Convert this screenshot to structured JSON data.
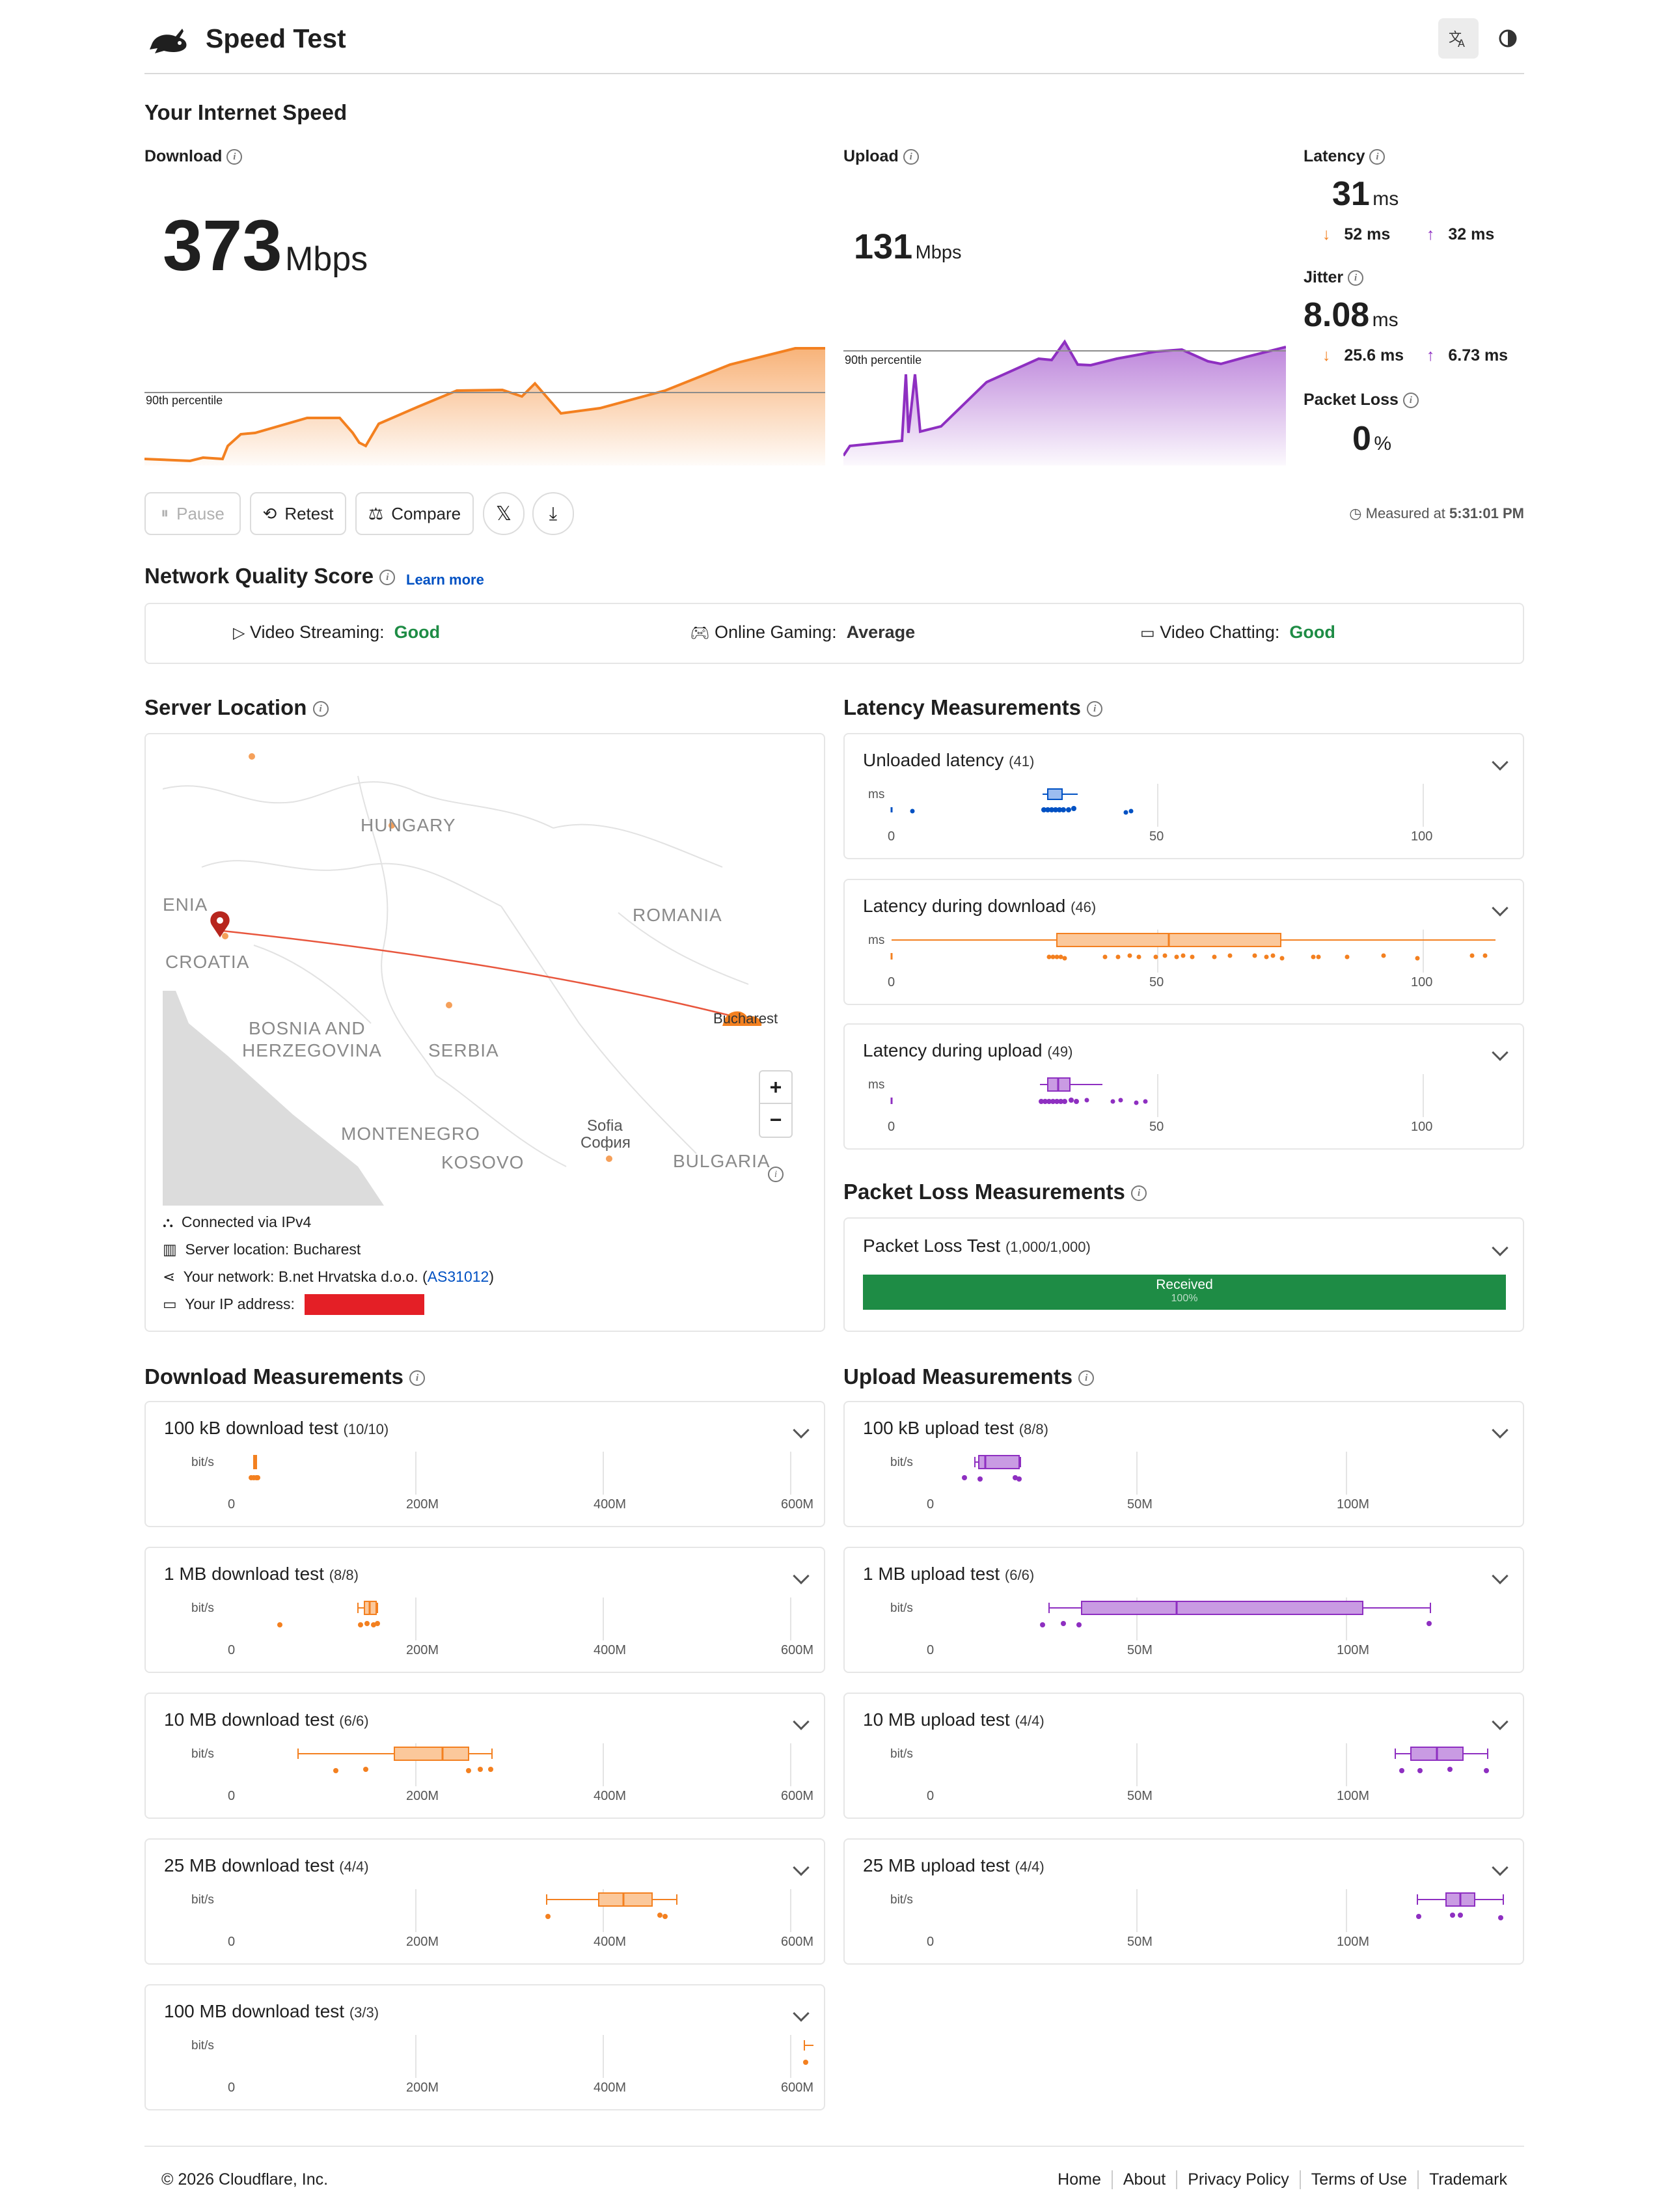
{
  "header": {
    "title": "Speed Test"
  },
  "section_title": "Your Internet Speed",
  "download": {
    "label": "Download",
    "value": "373",
    "unit": "Mbps",
    "percentile": "90th percentile"
  },
  "upload": {
    "label": "Upload",
    "value": "131",
    "unit": "Mbps",
    "percentile": "90th percentile"
  },
  "latency": {
    "label": "Latency",
    "value": "31",
    "unit": "ms",
    "down": "52 ms",
    "up": "32 ms"
  },
  "jitter": {
    "label": "Jitter",
    "value": "8.08",
    "unit": "ms",
    "down": "25.6 ms",
    "up": "6.73 ms"
  },
  "packet_loss": {
    "label": "Packet Loss",
    "value": "0",
    "unit": "%"
  },
  "buttons": {
    "pause": "Pause",
    "retest": "Retest",
    "compare": "Compare"
  },
  "measured": {
    "label": "Measured at",
    "time": "5:31:01 PM"
  },
  "nqs": {
    "title": "Network Quality Score",
    "learn_more": "Learn more",
    "streaming_label": "Video Streaming:",
    "streaming_value": "Good",
    "gaming_label": "Online Gaming:",
    "gaming_value": "Average",
    "chatting_label": "Video Chatting:",
    "chatting_value": "Good"
  },
  "server": {
    "title": "Server Location",
    "map_labels": {
      "hungary": "HUNGARY",
      "romania": "ROMANIA",
      "croatia": "CROATIA",
      "bih1": "BOSNIA AND",
      "bih2": "HERZEGOVINA",
      "serbia": "SERBIA",
      "montenegro": "MONTENEGRO",
      "kosovo": "KOSOVO",
      "bulgaria": "BULGARIA",
      "sofia": "Sofia",
      "sofia_cyr": "София",
      "bucharest": "Bucharest",
      "slovenia": "ENIA"
    },
    "connected_label": "Connected via",
    "connected_value": "IPv4",
    "location_label": "Server location:",
    "location_value": "Bucharest",
    "network_label": "Your network:",
    "network_value": "B.net Hrvatska d.o.o.",
    "network_as": "AS31012",
    "ip_label": "Your IP address:"
  },
  "latency_measurements": {
    "title": "Latency Measurements",
    "unloaded": {
      "label": "Unloaded latency",
      "count": "(41)"
    },
    "download": {
      "label": "Latency during download",
      "count": "(46)"
    },
    "upload": {
      "label": "Latency during upload",
      "count": "(49)"
    },
    "unit": "ms",
    "ticks": [
      "0",
      "50",
      "100"
    ]
  },
  "packet_loss_measurements": {
    "title": "Packet Loss Measurements",
    "test_label": "Packet Loss Test",
    "test_count": "(1,000/1,000)",
    "received_label": "Received",
    "received_pct": "100%"
  },
  "download_measurements": {
    "title": "Download Measurements",
    "unit": "bit/s",
    "ticks": [
      "0",
      "200M",
      "400M",
      "600M"
    ],
    "tests": [
      {
        "label": "100 kB download test",
        "count": "(10/10)"
      },
      {
        "label": "1 MB download test",
        "count": "(8/8)"
      },
      {
        "label": "10 MB download test",
        "count": "(6/6)"
      },
      {
        "label": "25 MB download test",
        "count": "(4/4)"
      },
      {
        "label": "100 MB download test",
        "count": "(3/3)"
      }
    ]
  },
  "upload_measurements": {
    "title": "Upload Measurements",
    "unit": "bit/s",
    "ticks": [
      "0",
      "50M",
      "100M"
    ],
    "tests": [
      {
        "label": "100 kB upload test",
        "count": "(8/8)"
      },
      {
        "label": "1 MB upload test",
        "count": "(6/6)"
      },
      {
        "label": "10 MB upload test",
        "count": "(4/4)"
      },
      {
        "label": "25 MB upload test",
        "count": "(4/4)"
      }
    ]
  },
  "footer": {
    "copyright": "© 2026 Cloudflare, Inc.",
    "links": [
      "Home",
      "About",
      "Privacy Policy",
      "Terms of Use",
      "Trademark"
    ]
  },
  "colors": {
    "download": "#f38020",
    "upload": "#8e2fc1",
    "latency": "#0051c3",
    "good": "#1e8c45",
    "received": "#1e8c45",
    "ip_redact": "#e41f26"
  }
}
